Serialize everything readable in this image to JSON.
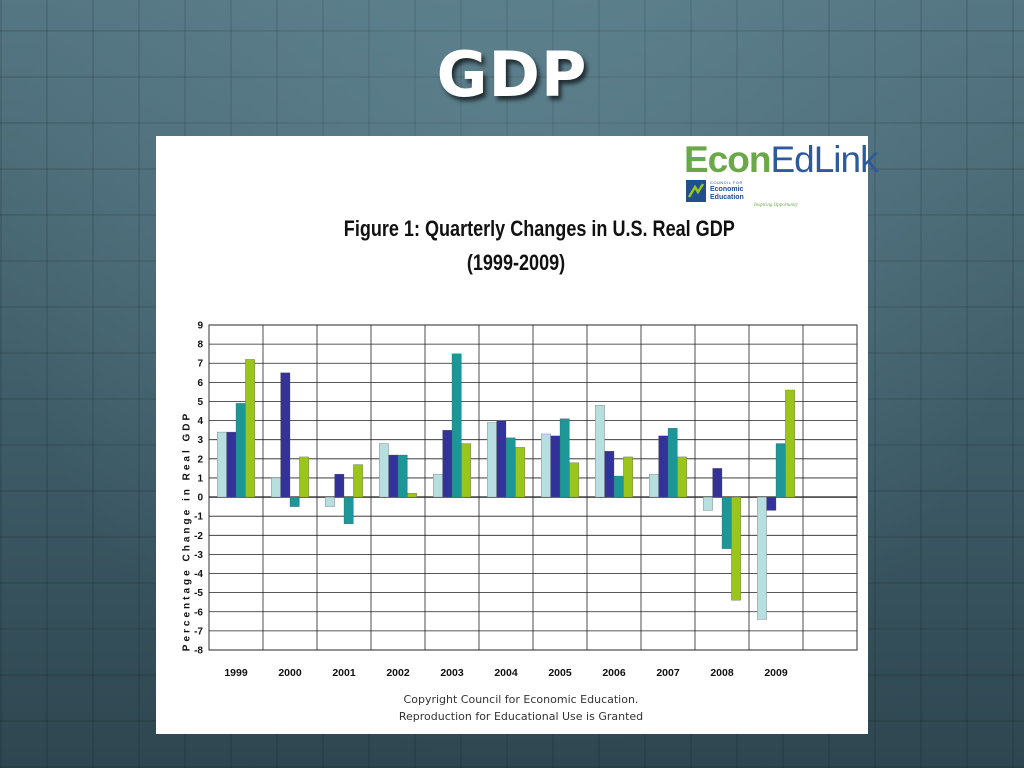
{
  "slide": {
    "title": "GDP"
  },
  "logo": {
    "econ": "Econ",
    "edlink": "EdLink",
    "council_line": "COUNCIL FOR",
    "org_line1": "Economic",
    "org_line2": "Education",
    "tagline": "Inspiring Opportunity"
  },
  "footer": {
    "line1": "Copyright Council for Economic Education.",
    "line2": "Reproduction for Educational Use is Granted"
  },
  "colors": {
    "q1": "#b8dfe0",
    "q2": "#33329a",
    "q3": "#1c9696",
    "q4": "#9ac61c",
    "slide_bg": "#3d5a66"
  },
  "chart_data": {
    "type": "bar",
    "title_line1": "Figure 1: Quarterly Changes in U.S. Real GDP",
    "title_line2": "(1999-2009)",
    "xlabel": "",
    "ylabel": "Percentage Change in Real GDP",
    "ylim": [
      -8,
      9
    ],
    "yticks": [
      9,
      8,
      7,
      6,
      5,
      4,
      3,
      2,
      1,
      0,
      -1,
      -2,
      -3,
      -4,
      -5,
      -6,
      -7,
      -8
    ],
    "grid": true,
    "legend": "none",
    "categories": [
      "1999",
      "2000",
      "2001",
      "2002",
      "2003",
      "2004",
      "2005",
      "2006",
      "2007",
      "2008",
      "2009"
    ],
    "series": [
      {
        "values": [
          3.4,
          1.0,
          -0.5,
          2.8,
          1.2,
          3.9,
          3.3,
          4.8,
          1.2,
          -0.7,
          -6.4
        ]
      },
      {
        "values": [
          3.4,
          6.5,
          1.2,
          2.2,
          3.5,
          4.0,
          3.2,
          2.4,
          3.2,
          1.5,
          -0.7
        ]
      },
      {
        "values": [
          4.9,
          -0.5,
          -1.4,
          2.2,
          7.5,
          3.1,
          4.1,
          1.1,
          3.6,
          -2.7,
          2.8
        ]
      },
      {
        "values": [
          7.2,
          2.1,
          1.7,
          0.2,
          2.8,
          2.6,
          1.8,
          2.1,
          2.1,
          -5.4,
          5.6
        ]
      }
    ]
  }
}
